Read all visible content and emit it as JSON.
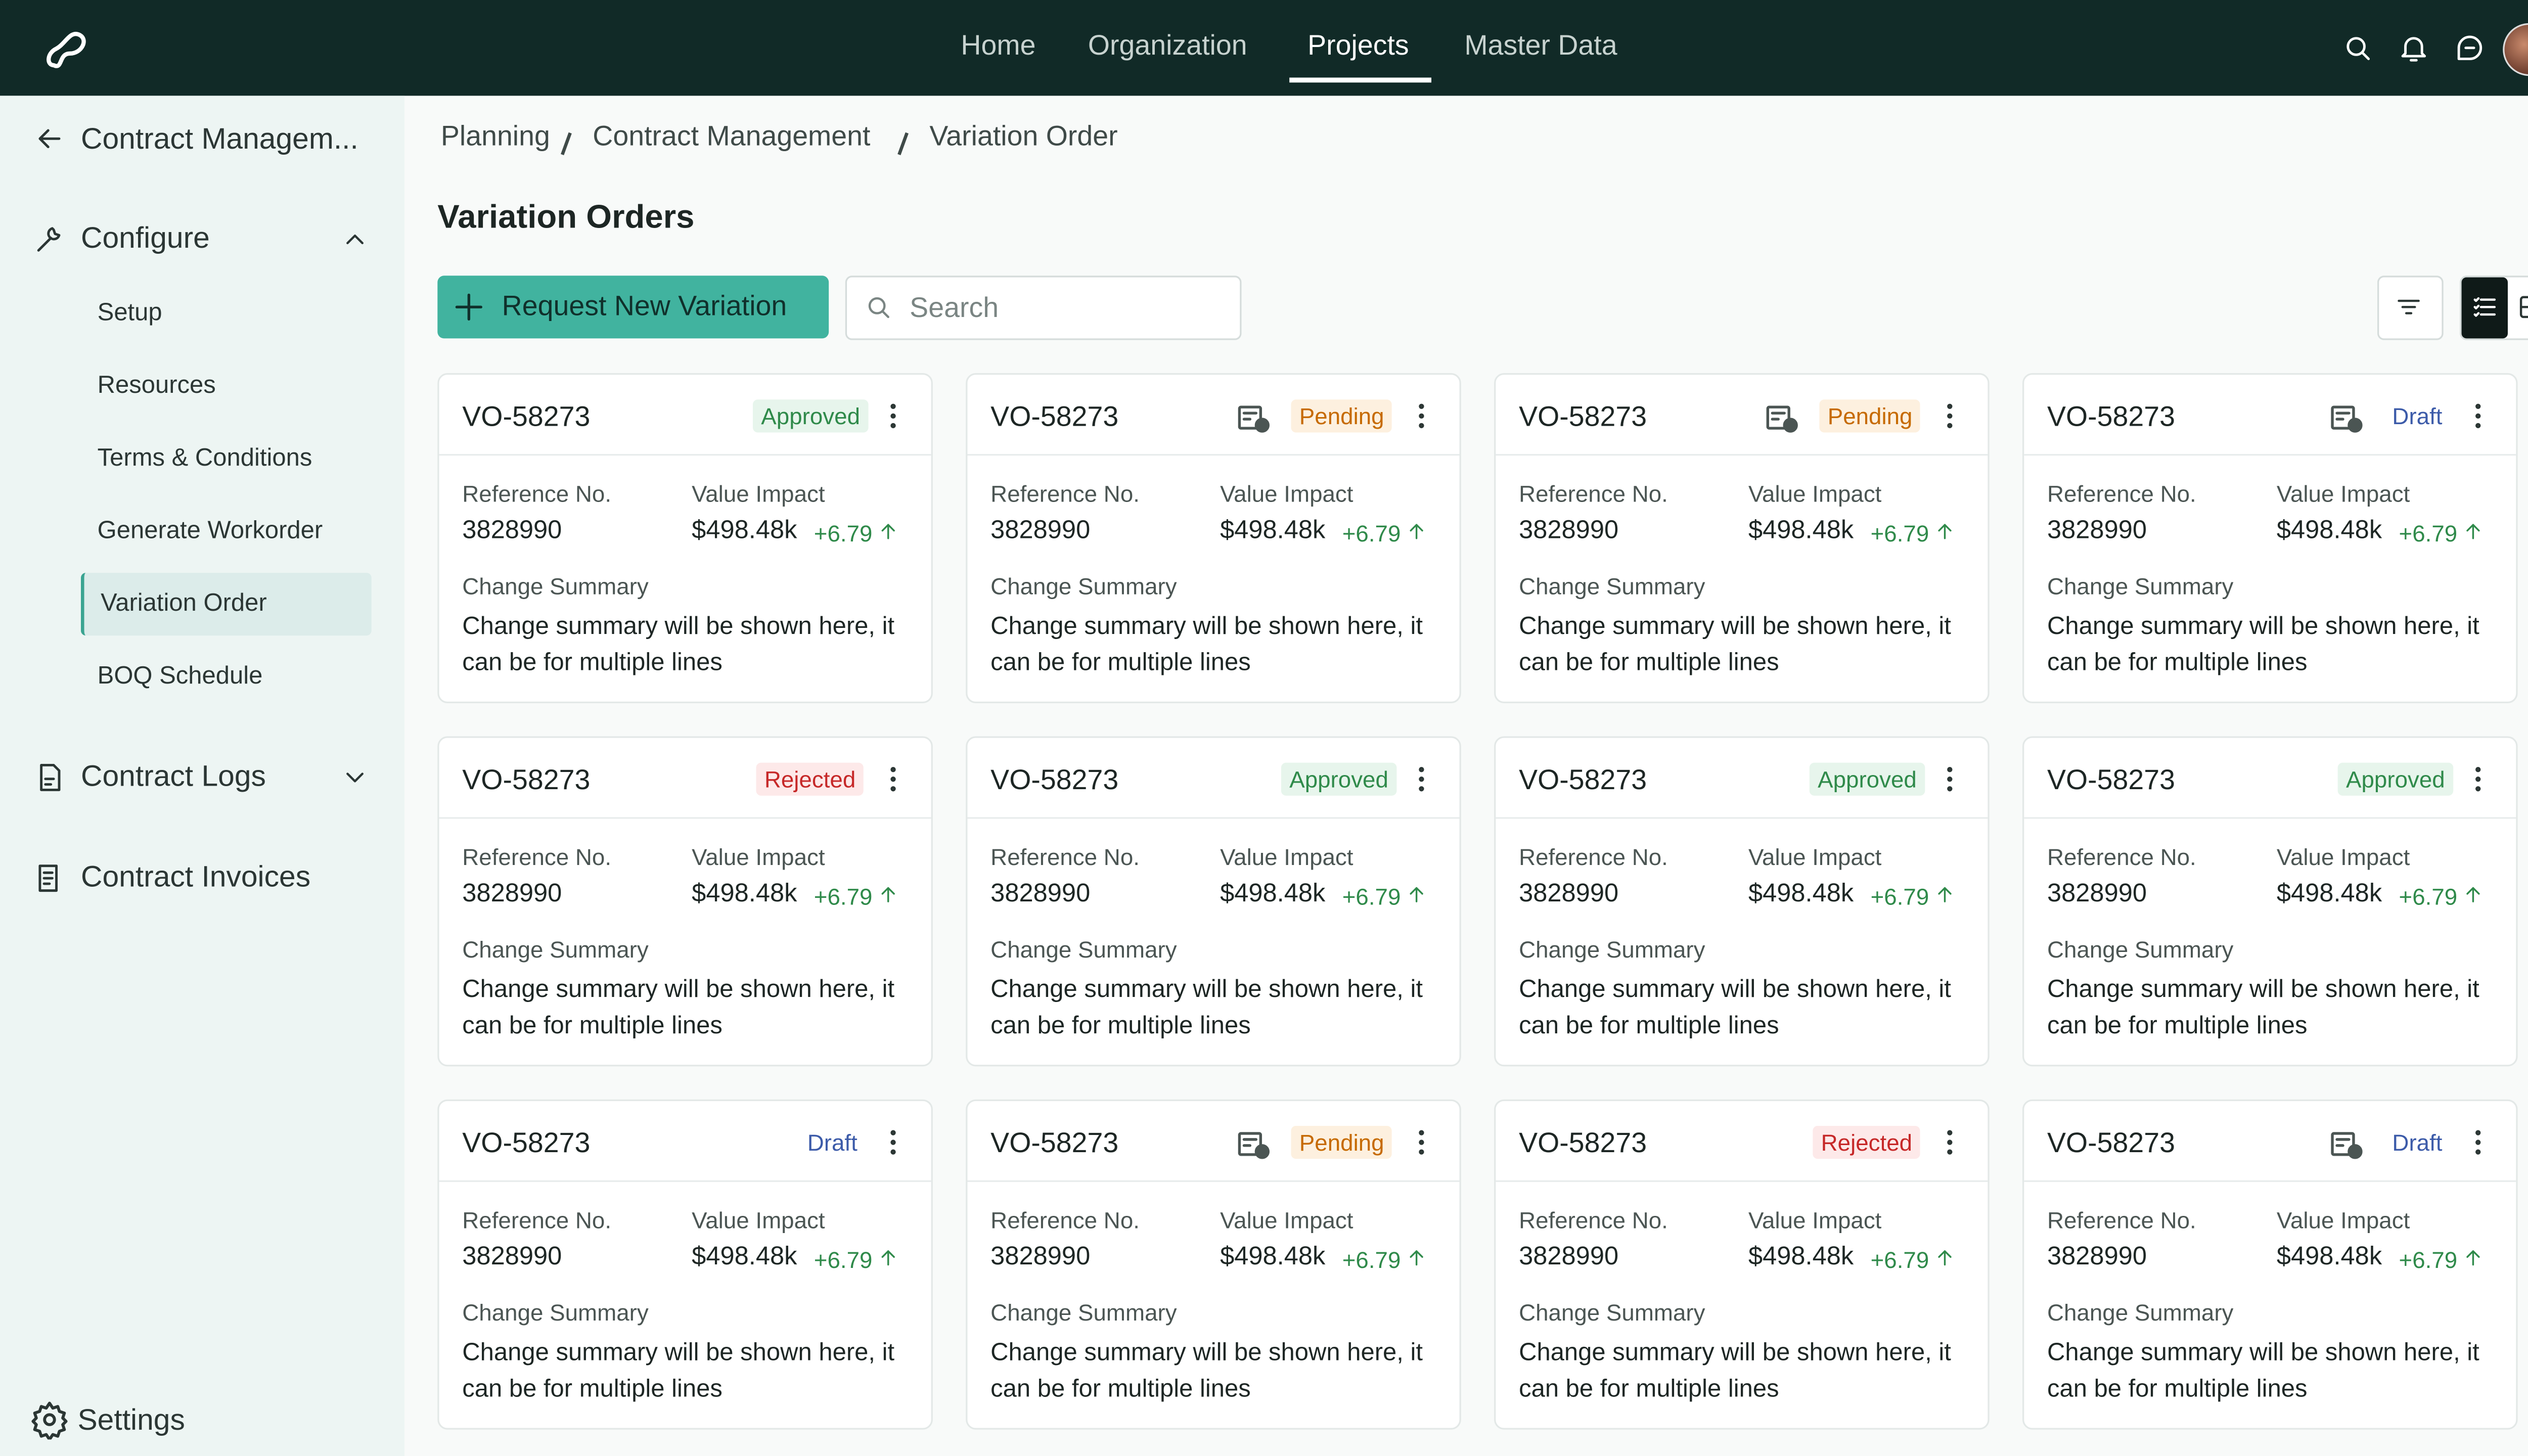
{
  "nav": {
    "items": [
      "Home",
      "Organization",
      "Projects",
      "Master Data"
    ],
    "active": 2
  },
  "sidebar": {
    "back": "Contract Managem...",
    "configure": "Configure",
    "sub_items": [
      "Setup",
      "Resources",
      "Terms & Conditions",
      "Generate Workorder",
      "Variation Order",
      "BOQ Schedule"
    ],
    "active": 4,
    "logs": "Contract Logs",
    "invoices": "Contract Invoices",
    "settings": "Settings"
  },
  "breadcrumb": [
    "Planning",
    "Contract Management",
    "Variation Order"
  ],
  "title": "Variation Orders",
  "toolbar": {
    "button": "Request New Variation",
    "search_placeholder": "Search"
  },
  "labels": {
    "reference": "Reference No.",
    "value": "Value Impact",
    "summary": "Change Summary"
  },
  "cards": [
    {
      "id": "VO-58273",
      "status": "Approved",
      "icon": false,
      "ref": "3828990",
      "value": "$498.48k",
      "delta": "+6.79",
      "summary": "Change summary will be shown here, it can be for multiple lines"
    },
    {
      "id": "VO-58273",
      "status": "Pending",
      "icon": true,
      "ref": "3828990",
      "value": "$498.48k",
      "delta": "+6.79",
      "summary": "Change summary will be shown here, it can be for multiple lines"
    },
    {
      "id": "VO-58273",
      "status": "Pending",
      "icon": true,
      "ref": "3828990",
      "value": "$498.48k",
      "delta": "+6.79",
      "summary": "Change summary will be shown here, it can be for multiple lines"
    },
    {
      "id": "VO-58273",
      "status": "Draft",
      "icon": true,
      "ref": "3828990",
      "value": "$498.48k",
      "delta": "+6.79",
      "summary": "Change summary will be shown here, it can be for multiple lines"
    },
    {
      "id": "VO-58273",
      "status": "Rejected",
      "icon": false,
      "ref": "3828990",
      "value": "$498.48k",
      "delta": "+6.79",
      "summary": "Change summary will be shown here, it can be for multiple lines"
    },
    {
      "id": "VO-58273",
      "status": "Approved",
      "icon": false,
      "ref": "3828990",
      "value": "$498.48k",
      "delta": "+6.79",
      "summary": "Change summary will be shown here, it can be for multiple lines"
    },
    {
      "id": "VO-58273",
      "status": "Approved",
      "icon": false,
      "ref": "3828990",
      "value": "$498.48k",
      "delta": "+6.79",
      "summary": "Change summary will be shown here, it can be for multiple lines"
    },
    {
      "id": "VO-58273",
      "status": "Approved",
      "icon": false,
      "ref": "3828990",
      "value": "$498.48k",
      "delta": "+6.79",
      "summary": "Change summary will be shown here, it can be for multiple lines"
    },
    {
      "id": "VO-58273",
      "status": "Draft",
      "icon": false,
      "ref": "3828990",
      "value": "$498.48k",
      "delta": "+6.79",
      "summary": "Change summary will be shown here, it can be for multiple lines"
    },
    {
      "id": "VO-58273",
      "status": "Pending",
      "icon": true,
      "ref": "3828990",
      "value": "$498.48k",
      "delta": "+6.79",
      "summary": "Change summary will be shown here, it can be for multiple lines"
    },
    {
      "id": "VO-58273",
      "status": "Rejected",
      "icon": false,
      "ref": "3828990",
      "value": "$498.48k",
      "delta": "+6.79",
      "summary": "Change summary will be shown here, it can be for multiple lines"
    },
    {
      "id": "VO-58273",
      "status": "Draft",
      "icon": true,
      "ref": "3828990",
      "value": "$498.48k",
      "delta": "+6.79",
      "summary": "Change summary will be shown here, it can be for multiple lines"
    }
  ]
}
